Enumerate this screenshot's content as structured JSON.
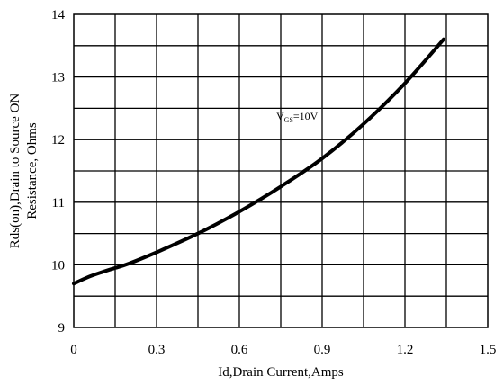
{
  "chart_data": {
    "type": "line",
    "title": "",
    "xlabel": "Id,Drain Current,Amps",
    "ylabel_lines": [
      "Rds(on),Drain to Source ON",
      "Resistance, Ohms"
    ],
    "xlim": [
      0,
      1.5
    ],
    "ylim": [
      9,
      14
    ],
    "xticks": [
      "0",
      "0.3",
      "0.6",
      "0.9",
      "1.2",
      "1.5"
    ],
    "yticks": [
      "9",
      "10",
      "11",
      "12",
      "13",
      "14"
    ],
    "grid": true,
    "annotation": {
      "main": "V",
      "sub": "GS",
      "rest": "=10V"
    },
    "series": [
      {
        "name": "",
        "x": [
          0,
          0.05,
          0.1,
          0.15,
          0.2,
          0.3,
          0.45,
          0.6,
          0.75,
          0.9,
          1.05,
          1.2,
          1.34
        ],
        "y": [
          9.7,
          9.8,
          9.88,
          9.95,
          10.02,
          10.2,
          10.5,
          10.85,
          11.25,
          11.7,
          12.25,
          12.9,
          13.6
        ]
      }
    ]
  }
}
